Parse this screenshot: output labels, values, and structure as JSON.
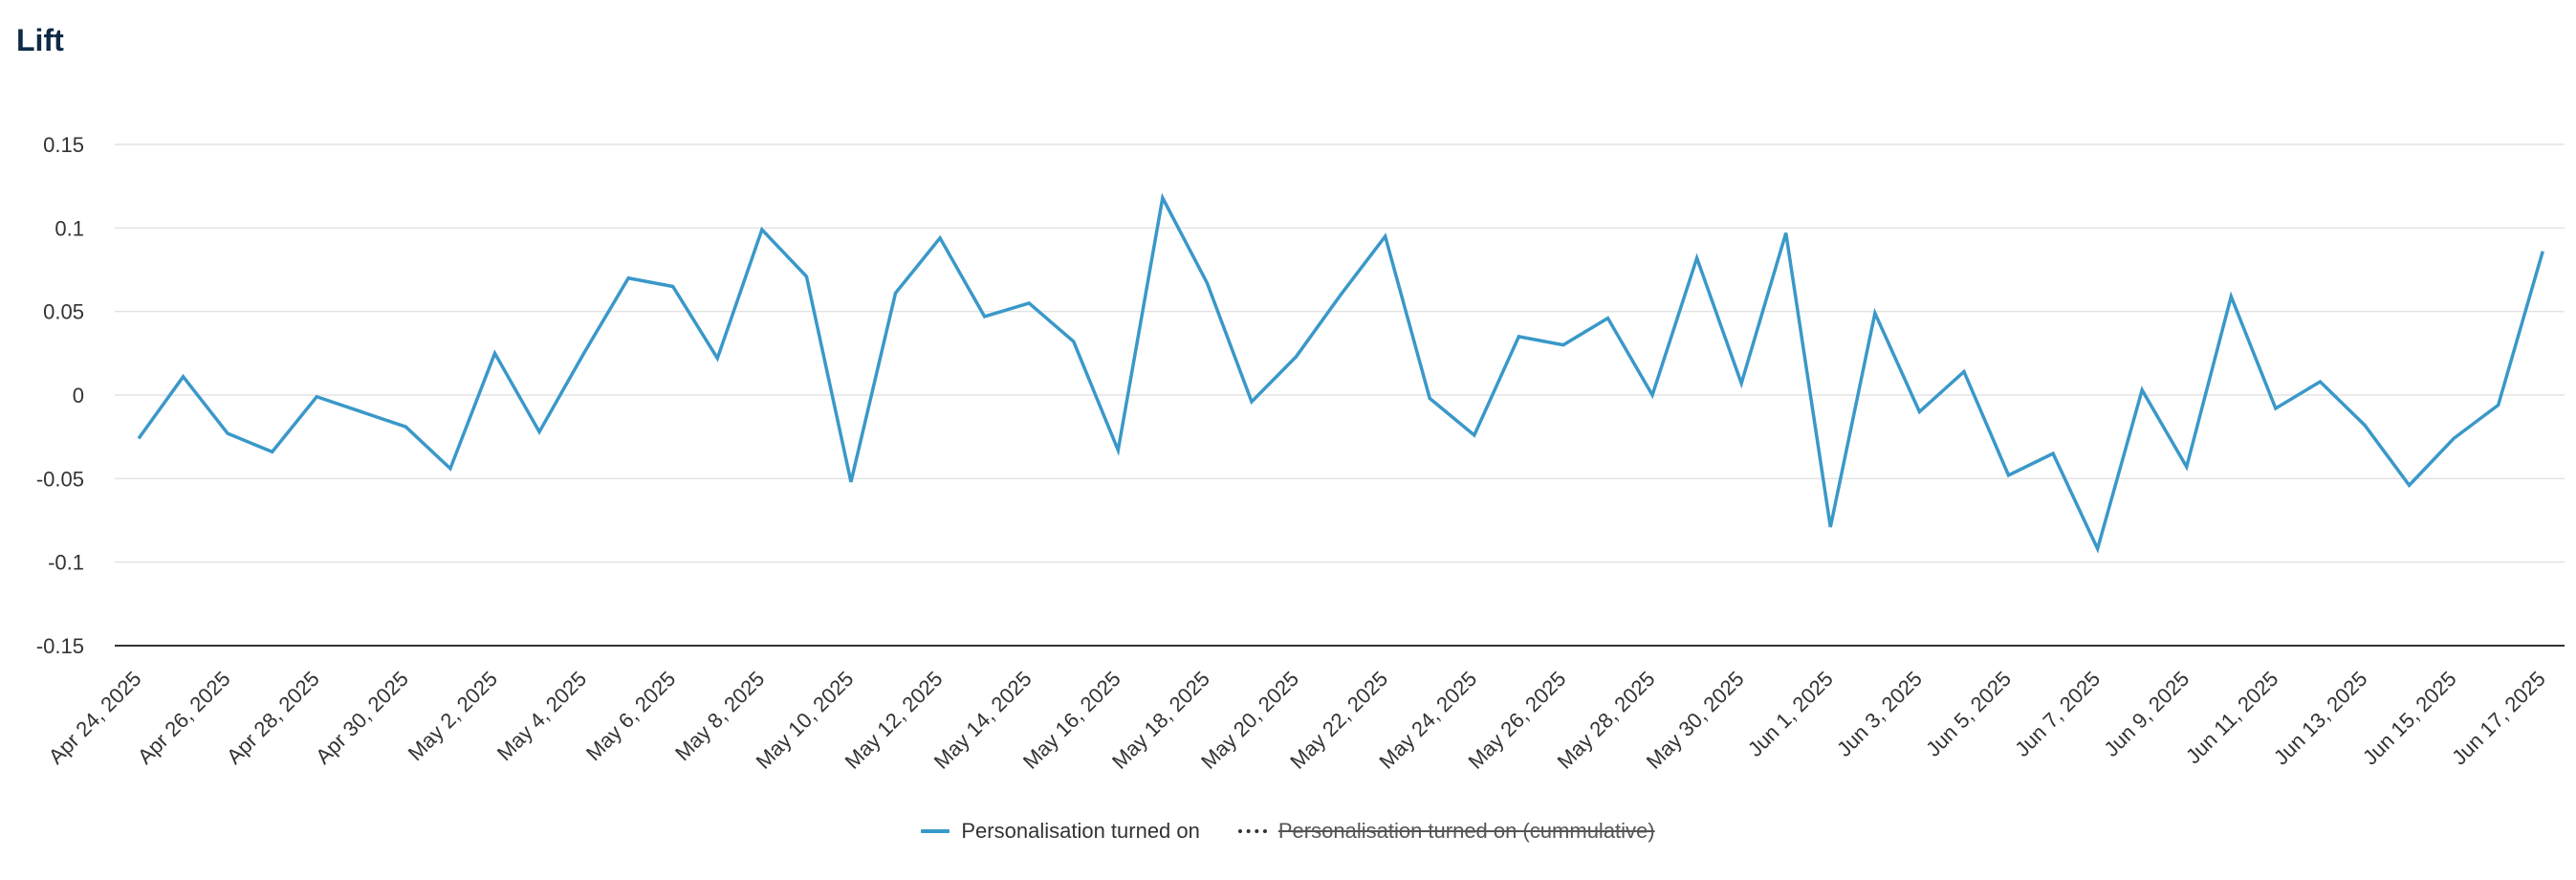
{
  "title": "Lift",
  "legend": {
    "items": [
      {
        "label": "Personalisation turned on",
        "style": "solid",
        "color": "#3a98c9",
        "hidden": false
      },
      {
        "label": "Personalisation turned on (cummulative)",
        "style": "dotted",
        "color": "#333333",
        "hidden": true
      }
    ]
  },
  "chart_data": {
    "type": "line",
    "title": "Lift",
    "xlabel": "",
    "ylabel": "",
    "ylim": [
      -0.15,
      0.15
    ],
    "yticks": [
      0.15,
      0.1,
      0.05,
      0,
      -0.05,
      -0.1,
      -0.15
    ],
    "ytick_labels": [
      "0.15",
      "0.1",
      "0.05",
      "0",
      "-0.05",
      "-0.1",
      "-0.15"
    ],
    "x_start": "Apr 24, 2025",
    "xtick_labels": [
      "Apr 24, 2025",
      "Apr 26, 2025",
      "Apr 28, 2025",
      "Apr 30, 2025",
      "May 2, 2025",
      "May 4, 2025",
      "May 6, 2025",
      "May 8, 2025",
      "May 10, 2025",
      "May 12, 2025",
      "May 14, 2025",
      "May 16, 2025",
      "May 18, 2025",
      "May 20, 2025",
      "May 22, 2025",
      "May 24, 2025",
      "May 26, 2025",
      "May 28, 2025",
      "May 30, 2025",
      "Jun 1, 2025",
      "Jun 3, 2025",
      "Jun 5, 2025",
      "Jun 7, 2025",
      "Jun 9, 2025",
      "Jun 11, 2025",
      "Jun 13, 2025",
      "Jun 15, 2025",
      "Jun 17, 2025"
    ],
    "grid": true,
    "legend_position": "bottom",
    "series": [
      {
        "name": "Personalisation turned on",
        "color": "#3a98c9",
        "values": [
          -0.026,
          0.011,
          -0.023,
          -0.034,
          -0.001,
          -0.01,
          -0.019,
          -0.044,
          0.025,
          -0.022,
          0.025,
          0.07,
          0.065,
          0.022,
          0.099,
          0.071,
          -0.052,
          0.061,
          0.094,
          0.047,
          0.055,
          0.032,
          -0.033,
          0.118,
          0.067,
          -0.004,
          0.023,
          0.06,
          0.095,
          -0.002,
          -0.024,
          0.035,
          0.03,
          0.046,
          0.0,
          0.082,
          0.007,
          0.097,
          -0.079,
          0.049,
          -0.01,
          0.014,
          -0.048,
          -0.035,
          -0.092,
          0.003,
          -0.043,
          0.059,
          -0.008,
          0.008,
          -0.018,
          -0.054,
          -0.026,
          -0.006,
          0.086
        ]
      }
    ]
  }
}
